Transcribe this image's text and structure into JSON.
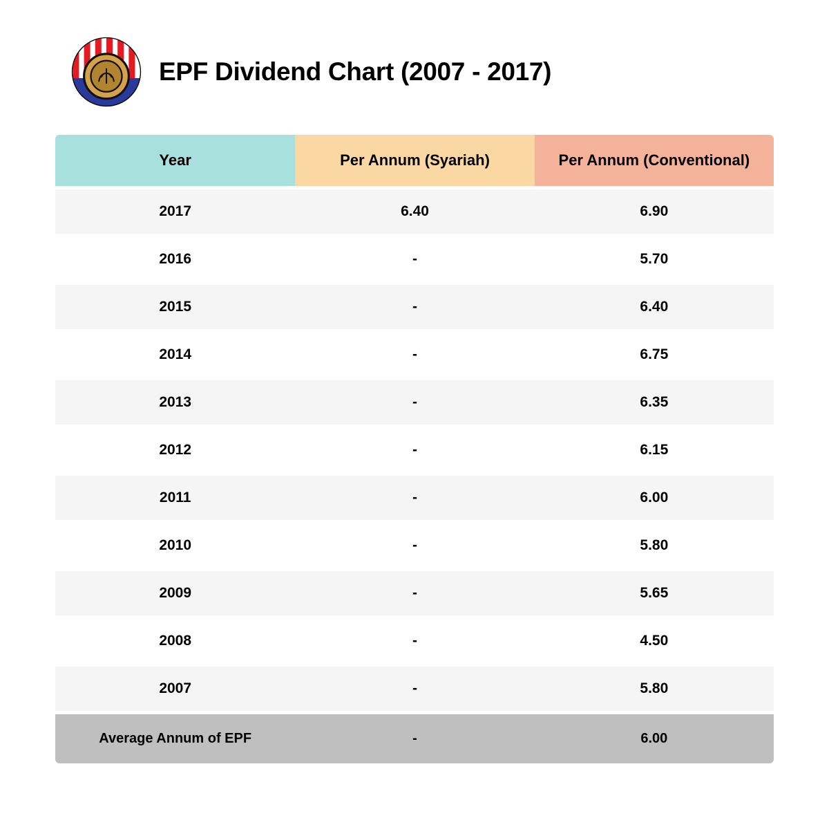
{
  "title": "EPF Dividend Chart (2007 - 2017)",
  "logo": {
    "name": "epf-logo",
    "stripe_red": "#e31b23",
    "stripe_white": "#ffffff",
    "coin_gold": "#d4a24a",
    "coin_gold_dark": "#b3842f",
    "coin_border": "#111111",
    "band_blue": "#2a3a9b"
  },
  "table": {
    "type": "table",
    "header_bg": {
      "year": "#a7e0dc",
      "syariah": "#fbd8a3",
      "conventional": "#f4b29a"
    },
    "row_bg_odd": "#f5f5f5",
    "row_bg_even": "#ffffff",
    "footer_bg": "#bfbfbf",
    "text_color": "#000000",
    "header_fontsize": 22,
    "cell_fontsize": 21,
    "columns": [
      "Year",
      "Per Annum (Syariah)",
      "Per Annum (Conventional)"
    ],
    "rows": [
      [
        "2017",
        "6.40",
        "6.90"
      ],
      [
        "2016",
        "-",
        "5.70"
      ],
      [
        "2015",
        "-",
        "6.40"
      ],
      [
        "2014",
        "-",
        "6.75"
      ],
      [
        "2013",
        "-",
        "6.35"
      ],
      [
        "2012",
        "-",
        "6.15"
      ],
      [
        "2011",
        "-",
        "6.00"
      ],
      [
        "2010",
        "-",
        "5.80"
      ],
      [
        "2009",
        "-",
        "5.65"
      ],
      [
        "2008",
        "-",
        "4.50"
      ],
      [
        "2007",
        "-",
        "5.80"
      ]
    ],
    "footer": [
      "Average Annum of EPF",
      "-",
      "6.00"
    ]
  }
}
